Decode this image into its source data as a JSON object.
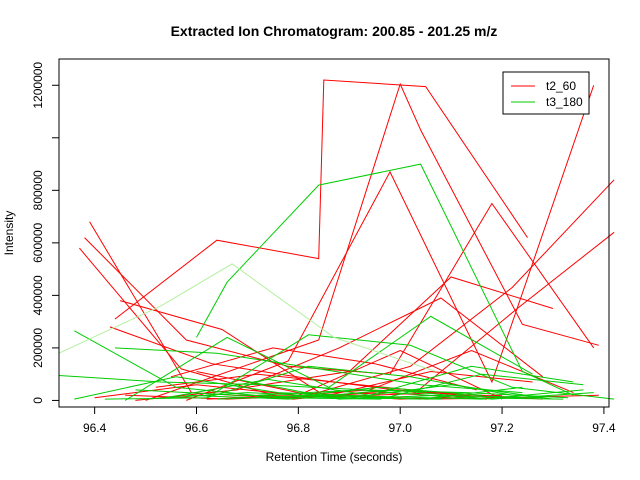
{
  "chart_data": {
    "type": "line",
    "title": "Extracted Ion Chromatogram: 200.85 - 201.25 m/z",
    "xlabel": "Retention Time (seconds)",
    "ylabel": "Intensity",
    "xlim": [
      96.33,
      97.41
    ],
    "ylim": [
      -25000,
      1300000
    ],
    "x_ticks": [
      96.4,
      96.6,
      96.8,
      97.0,
      97.2,
      97.4
    ],
    "x_tick_labels": [
      "96.4",
      "96.6",
      "96.8",
      "97.0",
      "97.2",
      "97.4"
    ],
    "y_ticks": [
      0,
      200000,
      400000,
      600000,
      800000,
      1000000,
      1200000
    ],
    "y_tick_labels": [
      "0",
      "200000",
      "400000",
      "600000",
      "800000",
      "",
      "1200000"
    ],
    "grid": false,
    "legend": {
      "placement": "top-right",
      "entries": [
        {
          "name": "t2_60",
          "color": "#ff0000"
        },
        {
          "name": "t3_180",
          "color": "#00cd00"
        }
      ]
    },
    "series": [
      {
        "name": "t2_60",
        "color": "#ff0000",
        "lines": [
          {
            "x": [
              96.44,
              96.64,
              96.84,
              96.85,
              97.05,
              97.25
            ],
            "y": [
              310000,
              610000,
              540000,
              1220000,
              1195000,
              620000
            ]
          },
          {
            "x": [
              96.5,
              96.84,
              97.0,
              97.04,
              97.24,
              97.39
            ],
            "y": [
              0,
              230000,
              1205000,
              1030000,
              290000,
              210000
            ]
          },
          {
            "x": [
              96.58,
              96.78,
              96.98,
              97.18,
              97.38
            ],
            "y": [
              0,
              150000,
              870000,
              70000,
              1200000
            ]
          },
          {
            "x": [
              96.48,
              96.68,
              96.88,
              97.08,
              97.28
            ],
            "y": [
              0,
              40000,
              200000,
              390000,
              90000
            ]
          },
          {
            "x": [
              96.46,
              96.66,
              96.86,
              97.06,
              97.26
            ],
            "y": [
              20000,
              5000,
              20000,
              110000,
              70000
            ]
          },
          {
            "x": [
              96.74,
              96.94,
              97.14,
              97.34
            ],
            "y": [
              10000,
              40000,
              190000,
              30000
            ]
          },
          {
            "x": [
              96.62,
              96.82,
              97.02,
              97.22,
              97.42
            ],
            "y": [
              5000,
              20000,
              130000,
              430000,
              840000
            ]
          },
          {
            "x": [
              96.38,
              96.58,
              96.78,
              96.98,
              97.18,
              97.38
            ],
            "y": [
              620000,
              230000,
              130000,
              100000,
              750000,
              200000
            ]
          },
          {
            "x": [
              96.39,
              96.59,
              96.79,
              96.99,
              97.19,
              97.39
            ],
            "y": [
              680000,
              30000,
              5000,
              40000,
              10000,
              20000
            ]
          },
          {
            "x": [
              96.37,
              96.57,
              96.77,
              96.97,
              97.17
            ],
            "y": [
              580000,
              120000,
              10000,
              30000,
              5000
            ]
          },
          {
            "x": [
              96.45,
              96.65,
              96.85,
              97.05,
              97.25
            ],
            "y": [
              380000,
              270000,
              20000,
              5000,
              10000
            ]
          },
          {
            "x": [
              96.43,
              96.63,
              96.83,
              97.03,
              97.23,
              97.42
            ],
            "y": [
              280000,
              140000,
              80000,
              30000,
              350000,
              640000
            ]
          },
          {
            "x": [
              96.6,
              96.8,
              97.0,
              97.2
            ],
            "y": [
              110000,
              30000,
              5000,
              20000
            ]
          },
          {
            "x": [
              96.7,
              96.9,
              97.1,
              97.3
            ],
            "y": [
              50000,
              110000,
              470000,
              350000
            ]
          },
          {
            "x": [
              96.52,
              96.72,
              96.92,
              97.12
            ],
            "y": [
              50000,
              100000,
              60000,
              20000
            ]
          },
          {
            "x": [
              96.55,
              96.75,
              96.95,
              97.15
            ],
            "y": [
              90000,
              200000,
              140000,
              40000
            ]
          },
          {
            "x": [
              96.68,
              96.88,
              97.08,
              97.28
            ],
            "y": [
              20000,
              15000,
              30000,
              5000
            ]
          },
          {
            "x": [
              96.4,
              96.6,
              96.8,
              97.0,
              97.2
            ],
            "y": [
              10000,
              60000,
              20000,
              190000,
              5000
            ]
          }
        ]
      },
      {
        "name": "t3_180",
        "color": "#00cd00",
        "lines": [
          {
            "x": [
              96.6,
              96.66,
              96.84,
              97.04,
              97.24,
              97.34
            ],
            "y": [
              240000,
              450000,
              820000,
              900000,
              110000,
              20000
            ]
          },
          {
            "x": [
              96.33,
              96.53,
              96.73,
              96.93,
              97.13,
              97.33
            ],
            "y": [
              95000,
              70000,
              60000,
              40000,
              30000,
              10000
            ]
          },
          {
            "x": [
              96.36,
              96.56,
              96.76,
              96.96,
              97.16,
              97.36
            ],
            "y": [
              265000,
              50000,
              10000,
              5000,
              100000,
              60000
            ]
          },
          {
            "x": [
              96.42,
              96.62,
              96.82,
              97.02,
              97.22,
              97.42
            ],
            "y": [
              5000,
              10000,
              250000,
              210000,
              50000,
              5000
            ]
          },
          {
            "x": [
              96.36,
              96.56,
              96.76,
              96.96,
              97.16,
              97.36
            ],
            "y": [
              5000,
              90000,
              30000,
              15000,
              5000,
              40000
            ]
          },
          {
            "x": [
              96.46,
              96.66,
              96.86,
              97.06,
              97.26
            ],
            "y": [
              0,
              240000,
              50000,
              320000,
              100000
            ]
          },
          {
            "x": [
              96.5,
              96.7,
              96.9,
              97.1,
              97.3
            ],
            "y": [
              5000,
              30000,
              10000,
              60000,
              5000
            ]
          },
          {
            "x": [
              96.54,
              96.74,
              96.94,
              97.14,
              97.34
            ],
            "y": [
              10000,
              80000,
              20000,
              130000,
              70000
            ]
          },
          {
            "x": [
              96.58,
              96.78,
              96.98,
              97.18,
              97.38
            ],
            "y": [
              20000,
              5000,
              40000,
              5000,
              30000
            ]
          },
          {
            "x": [
              96.62,
              96.82,
              97.02,
              97.22
            ],
            "y": [
              10000,
              130000,
              90000,
              20000
            ]
          },
          {
            "x": [
              96.64,
              96.84,
              97.04,
              97.24
            ],
            "y": [
              5000,
              20000,
              5000,
              50000
            ]
          },
          {
            "x": [
              96.68,
              96.88,
              97.08,
              97.28
            ],
            "y": [
              80000,
              5000,
              20000,
              10000
            ]
          },
          {
            "x": [
              96.44,
              96.64,
              96.84,
              97.04,
              97.24
            ],
            "y": [
              200000,
              180000,
              120000,
              60000,
              30000
            ]
          },
          {
            "x": [
              96.48,
              96.68,
              96.88,
              97.08
            ],
            "y": [
              40000,
              20000,
              10000,
              5000
            ]
          },
          {
            "x": [
              96.72,
              96.92,
              97.12,
              97.32
            ],
            "y": [
              20000,
              40000,
              10000,
              5000
            ]
          },
          {
            "x": [
              96.76,
              96.96,
              97.16
            ],
            "y": [
              10000,
              50000,
              20000
            ]
          }
        ]
      },
      {
        "name": "",
        "color": "#b4f0a0",
        "lines": [
          {
            "x": [
              96.33,
              96.53,
              96.67,
              96.87,
              97.07
            ],
            "y": [
              180000,
              360000,
              520000,
              240000,
              110000
            ]
          }
        ]
      }
    ]
  }
}
